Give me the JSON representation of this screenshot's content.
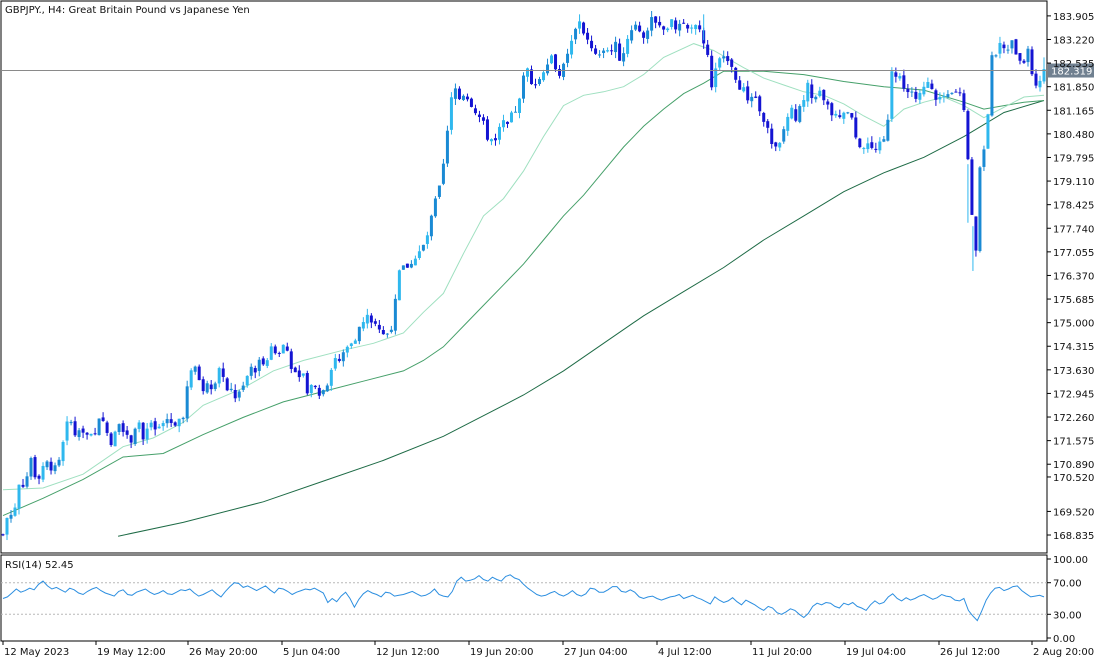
{
  "header": {
    "symbol": "GBPJPY., H4:  Great Britain Pound vs Japanese Yen",
    "price_tag": "182.319",
    "rsi_label": "RSI(14) 52.45"
  },
  "colors": {
    "background": "#ffffff",
    "frame": "#000000",
    "bull": "#1a8ad4",
    "bull_light": "#2fb8ee",
    "bear": "#1414d2",
    "ma_fast": "#9fe0c0",
    "ma_mid": "#46a06a",
    "ma_slow": "#1e6b46",
    "rsi_line": "#2d8fe0",
    "price_tag_bg": "#708090"
  },
  "chart_data": [
    {
      "type": "candlestick",
      "title": "GBPJPY., H4:  Great Britain Pound vs Japanese Yen",
      "ylim": [
        168.4,
        184.25
      ],
      "y_ticks": [
        "183.905",
        "183.220",
        "182.535",
        "181.850",
        "181.165",
        "180.480",
        "179.795",
        "179.110",
        "178.425",
        "177.740",
        "177.055",
        "176.370",
        "175.685",
        "175.000",
        "174.315",
        "173.630",
        "172.945",
        "172.260",
        "171.575",
        "170.890",
        "170.520",
        "169.520",
        "168.835"
      ],
      "x_ticks": [
        "12 May 2023",
        "19 May 12:00",
        "26 May 20:00",
        "5 Jun 04:00",
        "12 Jun 12:00",
        "19 Jun 20:00",
        "27 Jun 04:00",
        "4 Jul 12:00",
        "11 Jul 20:00",
        "19 Jul 04:00",
        "26 Jul 12:00",
        "2 Aug 20:00"
      ],
      "current_price": 182.319,
      "close_path": [
        [
          0,
          168.85
        ],
        [
          6,
          169.6
        ],
        [
          10,
          169.3
        ],
        [
          16,
          170.3
        ],
        [
          22,
          170.4
        ],
        [
          28,
          170.9
        ],
        [
          34,
          170.5
        ],
        [
          40,
          170.85
        ],
        [
          46,
          170.95
        ],
        [
          52,
          170.7
        ],
        [
          58,
          171.0
        ],
        [
          62,
          171.9
        ],
        [
          68,
          172.1
        ],
        [
          74,
          171.6
        ],
        [
          80,
          171.95
        ],
        [
          86,
          171.6
        ],
        [
          92,
          171.7
        ],
        [
          98,
          172.3
        ],
        [
          104,
          171.8
        ],
        [
          110,
          171.5
        ],
        [
          116,
          172.2
        ],
        [
          122,
          171.9
        ],
        [
          128,
          171.6
        ],
        [
          134,
          172.3
        ],
        [
          140,
          171.6
        ],
        [
          146,
          172.0
        ],
        [
          152,
          171.8
        ],
        [
          158,
          172.0
        ],
        [
          164,
          172.2
        ],
        [
          170,
          172.1
        ],
        [
          176,
          172.2
        ],
        [
          180,
          172.4
        ],
        [
          186,
          173.4
        ],
        [
          192,
          173.7
        ],
        [
          198,
          173.2
        ],
        [
          204,
          173.1
        ],
        [
          210,
          173.3
        ],
        [
          216,
          173.6
        ],
        [
          222,
          173.1
        ],
        [
          228,
          173.0
        ],
        [
          234,
          172.8
        ],
        [
          240,
          173.1
        ],
        [
          246,
          173.6
        ],
        [
          252,
          173.7
        ],
        [
          258,
          173.9
        ],
        [
          264,
          174.0
        ],
        [
          270,
          174.3
        ],
        [
          276,
          174.1
        ],
        [
          282,
          174.4
        ],
        [
          288,
          173.8
        ],
        [
          294,
          173.2
        ],
        [
          300,
          173.5
        ],
        [
          306,
          172.9
        ],
        [
          312,
          173.3
        ],
        [
          318,
          172.9
        ],
        [
          324,
          173.3
        ],
        [
          330,
          174.0
        ],
        [
          336,
          173.9
        ],
        [
          342,
          174.2
        ],
        [
          348,
          174.5
        ],
        [
          354,
          174.7
        ],
        [
          360,
          175.0
        ],
        [
          366,
          175.2
        ],
        [
          372,
          174.9
        ],
        [
          378,
          174.6
        ],
        [
          384,
          174.7
        ],
        [
          390,
          175.1
        ],
        [
          396,
          176.4
        ],
        [
          402,
          176.6
        ],
        [
          408,
          176.8
        ],
        [
          414,
          176.9
        ],
        [
          420,
          177.2
        ],
        [
          426,
          177.7
        ],
        [
          432,
          178.5
        ],
        [
          438,
          179.0
        ],
        [
          444,
          180.5
        ],
        [
          450,
          181.9
        ],
        [
          456,
          181.5
        ],
        [
          462,
          181.7
        ],
        [
          468,
          181.4
        ],
        [
          474,
          181.1
        ],
        [
          480,
          180.7
        ],
        [
          486,
          180.3
        ],
        [
          492,
          180.4
        ],
        [
          498,
          180.9
        ],
        [
          504,
          180.6
        ],
        [
          510,
          181.1
        ],
        [
          516,
          181.4
        ],
        [
          522,
          182.4
        ],
        [
          528,
          182.1
        ],
        [
          534,
          181.9
        ],
        [
          540,
          182.4
        ],
        [
          546,
          182.8
        ],
        [
          552,
          182.5
        ],
        [
          558,
          182.2
        ],
        [
          564,
          182.7
        ],
        [
          570,
          183.3
        ],
        [
          576,
          183.8
        ],
        [
          582,
          183.3
        ],
        [
          588,
          182.9
        ],
        [
          594,
          182.6
        ],
        [
          600,
          182.8
        ],
        [
          606,
          182.9
        ],
        [
          612,
          183.0
        ],
        [
          618,
          182.6
        ],
        [
          624,
          183.3
        ],
        [
          630,
          183.7
        ],
        [
          636,
          183.5
        ],
        [
          642,
          183.4
        ],
        [
          648,
          183.7
        ],
        [
          654,
          183.6
        ],
        [
          660,
          183.5
        ],
        [
          666,
          183.7
        ],
        [
          672,
          183.6
        ],
        [
          678,
          183.7
        ],
        [
          684,
          183.5
        ],
        [
          690,
          183.8
        ],
        [
          696,
          183.4
        ],
        [
          702,
          183.1
        ],
        [
          708,
          182.0
        ],
        [
          714,
          182.4
        ],
        [
          720,
          182.9
        ],
        [
          726,
          182.7
        ],
        [
          732,
          182.2
        ],
        [
          738,
          181.8
        ],
        [
          744,
          181.5
        ],
        [
          750,
          181.4
        ],
        [
          756,
          181.3
        ],
        [
          762,
          180.8
        ],
        [
          768,
          180.1
        ],
        [
          774,
          179.9
        ],
        [
          780,
          180.6
        ],
        [
          786,
          181.2
        ],
        [
          792,
          181.0
        ],
        [
          798,
          181.2
        ],
        [
          804,
          181.8
        ],
        [
          810,
          181.4
        ],
        [
          816,
          181.6
        ],
        [
          822,
          181.3
        ],
        [
          828,
          181.1
        ],
        [
          834,
          180.9
        ],
        [
          840,
          181.1
        ],
        [
          846,
          181.0
        ],
        [
          852,
          180.5
        ],
        [
          858,
          180.1
        ],
        [
          864,
          180.2
        ],
        [
          870,
          179.9
        ],
        [
          876,
          180.1
        ],
        [
          882,
          180.3
        ],
        [
          888,
          182.4
        ],
        [
          894,
          182.2
        ],
        [
          900,
          181.9
        ],
        [
          906,
          181.8
        ],
        [
          912,
          181.4
        ],
        [
          918,
          181.6
        ],
        [
          924,
          181.9
        ],
        [
          930,
          181.6
        ],
        [
          936,
          181.5
        ],
        [
          942,
          181.4
        ],
        [
          948,
          181.6
        ],
        [
          954,
          181.7
        ],
        [
          960,
          181.3
        ],
        [
          964,
          179.6
        ],
        [
          968,
          178.0
        ],
        [
          972,
          177.2
        ],
        [
          976,
          179.5
        ],
        [
          980,
          180.1
        ],
        [
          984,
          181.1
        ],
        [
          988,
          182.6
        ],
        [
          994,
          183.0
        ],
        [
          1000,
          182.9
        ],
        [
          1006,
          183.1
        ],
        [
          1012,
          182.9
        ],
        [
          1018,
          182.6
        ],
        [
          1024,
          182.8
        ],
        [
          1030,
          182.0
        ],
        [
          1036,
          182.1
        ],
        [
          1040,
          182.3
        ]
      ],
      "ma_fast_path": [
        [
          0,
          170.15
        ],
        [
          40,
          170.2
        ],
        [
          80,
          170.6
        ],
        [
          120,
          171.4
        ],
        [
          150,
          171.65
        ],
        [
          180,
          172.1
        ],
        [
          200,
          172.6
        ],
        [
          240,
          173.1
        ],
        [
          270,
          173.6
        ],
        [
          300,
          173.9
        ],
        [
          340,
          174.2
        ],
        [
          370,
          174.4
        ],
        [
          400,
          174.7
        ],
        [
          420,
          175.3
        ],
        [
          440,
          175.85
        ],
        [
          460,
          177.0
        ],
        [
          480,
          178.1
        ],
        [
          500,
          178.6
        ],
        [
          520,
          179.4
        ],
        [
          540,
          180.4
        ],
        [
          560,
          181.3
        ],
        [
          580,
          181.6
        ],
        [
          600,
          181.7
        ],
        [
          620,
          181.85
        ],
        [
          640,
          182.2
        ],
        [
          660,
          182.7
        ],
        [
          690,
          183.1
        ],
        [
          710,
          182.9
        ],
        [
          740,
          182.4
        ],
        [
          760,
          182.1
        ],
        [
          780,
          181.9
        ],
        [
          800,
          181.7
        ],
        [
          820,
          181.6
        ],
        [
          840,
          181.35
        ],
        [
          860,
          181.0
        ],
        [
          880,
          180.7
        ],
        [
          900,
          181.2
        ],
        [
          920,
          181.4
        ],
        [
          940,
          181.55
        ],
        [
          960,
          181.3
        ],
        [
          980,
          180.95
        ],
        [
          1000,
          181.25
        ],
        [
          1020,
          181.55
        ],
        [
          1040,
          181.6
        ]
      ],
      "ma_mid_path": [
        [
          0,
          169.4
        ],
        [
          40,
          169.9
        ],
        [
          80,
          170.45
        ],
        [
          120,
          171.1
        ],
        [
          160,
          171.2
        ],
        [
          200,
          171.75
        ],
        [
          240,
          172.25
        ],
        [
          280,
          172.7
        ],
        [
          320,
          173.0
        ],
        [
          360,
          173.3
        ],
        [
          400,
          173.6
        ],
        [
          420,
          173.9
        ],
        [
          440,
          174.3
        ],
        [
          460,
          174.9
        ],
        [
          480,
          175.5
        ],
        [
          500,
          176.1
        ],
        [
          520,
          176.7
        ],
        [
          540,
          177.4
        ],
        [
          560,
          178.1
        ],
        [
          580,
          178.7
        ],
        [
          600,
          179.4
        ],
        [
          620,
          180.1
        ],
        [
          640,
          180.7
        ],
        [
          660,
          181.2
        ],
        [
          680,
          181.65
        ],
        [
          700,
          181.95
        ],
        [
          720,
          182.3
        ],
        [
          760,
          182.3
        ],
        [
          800,
          182.2
        ],
        [
          840,
          182.0
        ],
        [
          880,
          181.85
        ],
        [
          920,
          181.75
        ],
        [
          960,
          181.4
        ],
        [
          980,
          181.2
        ],
        [
          1000,
          181.3
        ],
        [
          1020,
          181.4
        ],
        [
          1040,
          181.45
        ]
      ],
      "ma_slow_path": [
        [
          115,
          168.8
        ],
        [
          180,
          169.2
        ],
        [
          260,
          169.8
        ],
        [
          320,
          170.4
        ],
        [
          380,
          171.0
        ],
        [
          440,
          171.7
        ],
        [
          480,
          172.3
        ],
        [
          520,
          172.9
        ],
        [
          560,
          173.6
        ],
        [
          600,
          174.4
        ],
        [
          640,
          175.2
        ],
        [
          680,
          175.9
        ],
        [
          720,
          176.6
        ],
        [
          760,
          177.4
        ],
        [
          800,
          178.1
        ],
        [
          840,
          178.8
        ],
        [
          880,
          179.35
        ],
        [
          920,
          179.8
        ],
        [
          960,
          180.4
        ],
        [
          1000,
          181.1
        ],
        [
          1040,
          181.45
        ]
      ],
      "wicks_extra": [
        [
          969,
          176.5
        ],
        [
          964,
          177.9
        ],
        [
          1040,
          182.7
        ],
        [
          700,
          183.95
        ],
        [
          576,
          183.95
        ]
      ]
    },
    {
      "type": "line",
      "title": "RSI(14) 52.45",
      "ylim": [
        0,
        100
      ],
      "y_ticks": [
        "100.00",
        "70.00",
        "30.00",
        "0.00"
      ],
      "levels": [
        70,
        30
      ],
      "values": [
        50,
        52,
        57,
        62,
        58,
        60,
        63,
        61,
        68,
        72,
        66,
        62,
        64,
        61,
        58,
        63,
        61,
        57,
        55,
        59,
        62,
        64,
        60,
        57,
        55,
        53,
        59,
        61,
        55,
        54,
        58,
        60,
        62,
        58,
        55,
        57,
        60,
        56,
        55,
        58,
        61,
        60,
        62,
        57,
        53,
        55,
        58,
        61,
        56,
        52,
        59,
        65,
        70,
        69,
        64,
        66,
        63,
        60,
        63,
        66,
        61,
        57,
        63,
        62,
        59,
        55,
        58,
        60,
        62,
        61,
        63,
        60,
        57,
        45,
        50,
        46,
        53,
        58,
        50,
        39,
        49,
        56,
        60,
        57,
        55,
        52,
        58,
        57,
        53,
        54,
        55,
        57,
        59,
        56,
        53,
        54,
        57,
        62,
        55,
        53,
        52,
        59,
        72,
        77,
        72,
        73,
        75,
        79,
        74,
        72,
        77,
        74,
        72,
        78,
        80,
        76,
        74,
        68,
        63,
        59,
        55,
        53,
        54,
        57,
        59,
        55,
        53,
        56,
        60,
        55,
        53,
        56,
        63,
        62,
        58,
        58,
        61,
        65,
        65,
        59,
        58,
        61,
        58,
        52,
        50,
        52,
        53,
        50,
        48,
        50,
        52,
        53,
        55,
        50,
        52,
        54,
        51,
        49,
        46,
        43,
        52,
        48,
        45,
        47,
        51,
        46,
        42,
        48,
        45,
        42,
        38,
        35,
        40,
        38,
        32,
        30,
        33,
        37,
        35,
        30,
        26,
        31,
        40,
        44,
        42,
        45,
        44,
        40,
        38,
        44,
        42,
        45,
        40,
        38,
        35,
        42,
        47,
        43,
        45,
        52,
        56,
        50,
        47,
        51,
        48,
        50,
        53,
        55,
        52,
        49,
        51,
        55,
        53,
        52,
        48,
        47,
        50,
        35,
        28,
        22,
        34,
        48,
        57,
        63,
        64,
        60,
        62,
        65,
        66,
        60,
        56,
        52,
        53,
        54,
        52
      ]
    }
  ]
}
